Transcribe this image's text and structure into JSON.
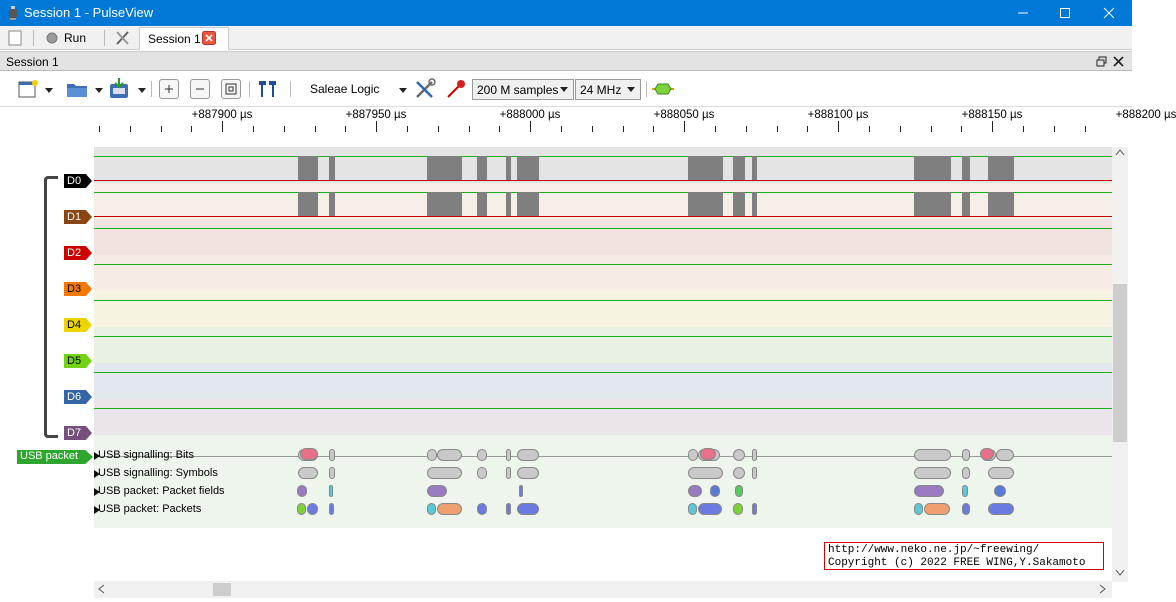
{
  "window": {
    "title": "Session 1 - PulseView",
    "controls": [
      "minimize",
      "maximize",
      "close"
    ]
  },
  "tabbar": {
    "run_label": "Run",
    "session_tab_label": "Session 1"
  },
  "session_header": {
    "title": "Session 1"
  },
  "toolbar": {
    "device": "Saleae Logic",
    "samples": "200 M samples",
    "samplerate": "24 MHz"
  },
  "ruler": {
    "labels": [
      "+887900 µs",
      "+887950 µs",
      "+888000 µs",
      "+888050 µs",
      "+888100 µs",
      "+888150 µs",
      "+888200 µs"
    ]
  },
  "channels": [
    {
      "name": "D0",
      "color": "#000000",
      "text_color": "#ffffff"
    },
    {
      "name": "D1",
      "color": "#8b4513",
      "text_color": "#ffffff"
    },
    {
      "name": "D2",
      "color": "#cc0000",
      "text_color": "#ffffff"
    },
    {
      "name": "D3",
      "color": "#f57900",
      "text_color": "#000000"
    },
    {
      "name": "D4",
      "color": "#edd400",
      "text_color": "#000000"
    },
    {
      "name": "D5",
      "color": "#73d216",
      "text_color": "#000000"
    },
    {
      "name": "D6",
      "color": "#3465a4",
      "text_color": "#ffffff"
    },
    {
      "name": "D7",
      "color": "#75507b",
      "text_color": "#ffffff"
    }
  ],
  "decoder": {
    "tag": "USB packet",
    "rows": [
      "USB signalling: Bits",
      "USB signalling: Symbols",
      "USB packet: Packet fields",
      "USB packet: Packets"
    ]
  },
  "copyright": {
    "line1": "http://www.neko.ne.jp/~freewing/",
    "line2": "Copyright (c) 2022 FREE WING,Y.Sakamoto"
  }
}
